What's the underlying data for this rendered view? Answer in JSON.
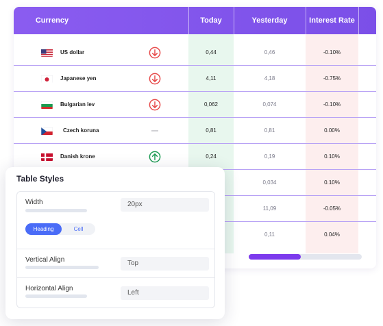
{
  "table": {
    "headers": {
      "currency": "Currency",
      "today": "Today",
      "yesterday": "Yesterday",
      "interest_rate": "Interest Rate"
    },
    "rows": [
      {
        "flag": "us-flag",
        "name": "US dollar",
        "trend": "down",
        "today": "0,44",
        "yesterday": "0,46",
        "rate": "-0.10%"
      },
      {
        "flag": "japan-flag",
        "name": "Japanese yen",
        "trend": "down",
        "today": "4,11",
        "yesterday": "4,18",
        "rate": "-0.75%"
      },
      {
        "flag": "bulgaria-flag",
        "name": "Bulgarian lev",
        "trend": "down",
        "today": "0,062",
        "yesterday": "0,074",
        "rate": "-0.10%"
      },
      {
        "flag": "czech-flag",
        "name": "Czech koruna",
        "trend": "flat",
        "today": "0,81",
        "yesterday": "0,81",
        "rate": "0.00%"
      },
      {
        "flag": "denmark-flag",
        "name": "Danish krone",
        "trend": "up",
        "today": "0,24",
        "yesterday": "0,19",
        "rate": "0.10%"
      },
      {
        "yesterday": "0,034",
        "rate": "0.10%"
      },
      {
        "yesterday": "11,09",
        "rate": "-0.05%"
      },
      {
        "yesterday": "0,11",
        "rate": "0.04%"
      }
    ],
    "colors": {
      "header": "#7b4fe8",
      "down": "#e74c4c",
      "up": "#1f9d55",
      "flat": "#b0b0b8",
      "scroll_thumb": "#7c3aed"
    }
  },
  "panel": {
    "title": "Table Styles",
    "width": {
      "label": "Width",
      "value": "20px"
    },
    "segment": {
      "heading": "Heading",
      "cell": "Cell",
      "selected": "Heading"
    },
    "vertical_align": {
      "label": "Vertical Align",
      "value": "Top"
    },
    "horizontal_align": {
      "label": "Horizontal Align",
      "value": "Left"
    },
    "accent": "#4a6cf7"
  }
}
